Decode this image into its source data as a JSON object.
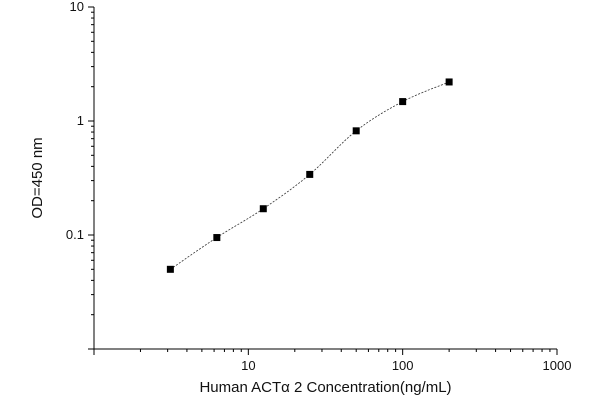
{
  "chart_data": {
    "type": "scatter",
    "title": "",
    "xlabel": "Human ACTα 2 Concentration(ng/mL)",
    "ylabel": "OD=450 nm",
    "xscale": "log",
    "yscale": "log",
    "xlim": [
      1,
      1000
    ],
    "ylim": [
      0.01,
      10
    ],
    "x_ticks": [
      {
        "value": 10,
        "label": "10"
      },
      {
        "value": 100,
        "label": "100"
      },
      {
        "value": 1000,
        "label": "1000"
      }
    ],
    "y_ticks": [
      {
        "value": 0.1,
        "label": "0.1"
      },
      {
        "value": 1,
        "label": "1"
      },
      {
        "value": 10,
        "label": "10"
      }
    ],
    "grid": false,
    "legend": "none",
    "series": [
      {
        "points": [
          {
            "x": 3.125,
            "y": 0.05
          },
          {
            "x": 6.25,
            "y": 0.095
          },
          {
            "x": 12.5,
            "y": 0.17
          },
          {
            "x": 25,
            "y": 0.34
          },
          {
            "x": 50,
            "y": 0.82
          },
          {
            "x": 100,
            "y": 1.48
          },
          {
            "x": 200,
            "y": 2.2
          }
        ],
        "fit_curve": "4-parameter logistic",
        "marker": "square",
        "color": "#000000"
      }
    ]
  }
}
